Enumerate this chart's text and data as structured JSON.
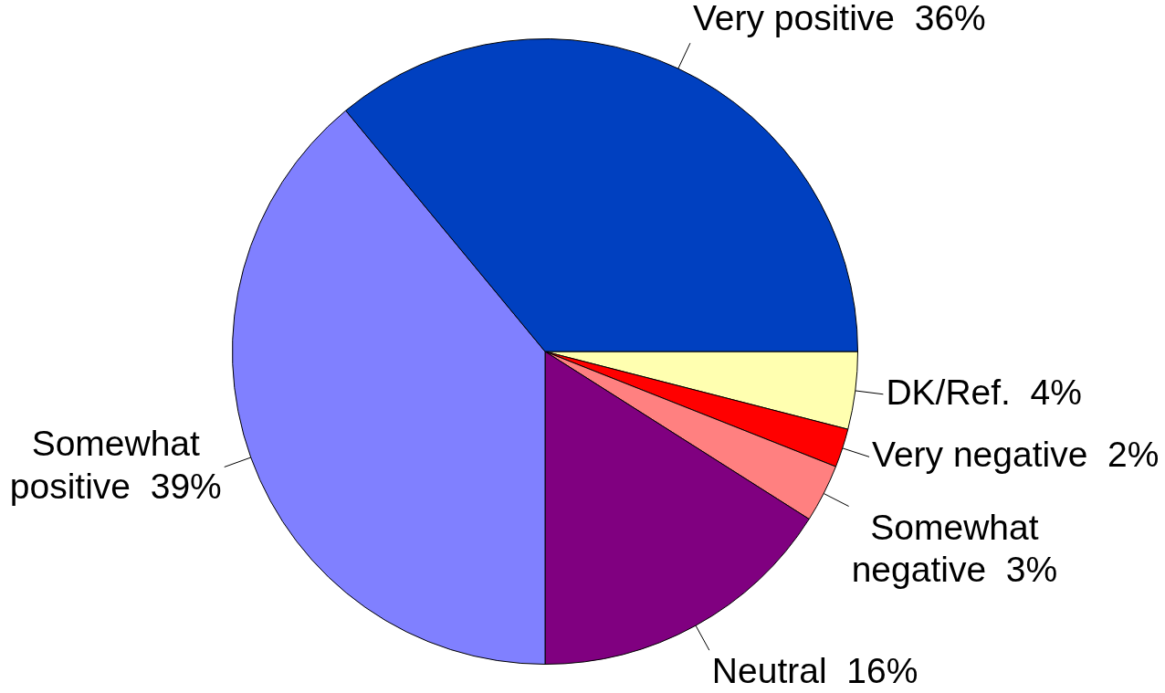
{
  "chart_data": {
    "type": "pie",
    "categories": [
      "DK/Ref.",
      "Very negative",
      "Somewhat\nnegative",
      "Neutral",
      "Somewhat\npositive",
      "Very positive"
    ],
    "values": [
      4,
      2,
      3,
      16,
      39,
      36
    ],
    "colors": [
      "#ffffb0",
      "#ff0000",
      "#ff8080",
      "#800080",
      "#8080ff",
      "#0040c0"
    ],
    "value_labels": [
      "4%",
      "2%",
      "3%",
      "16%",
      "39%",
      "36%"
    ]
  }
}
